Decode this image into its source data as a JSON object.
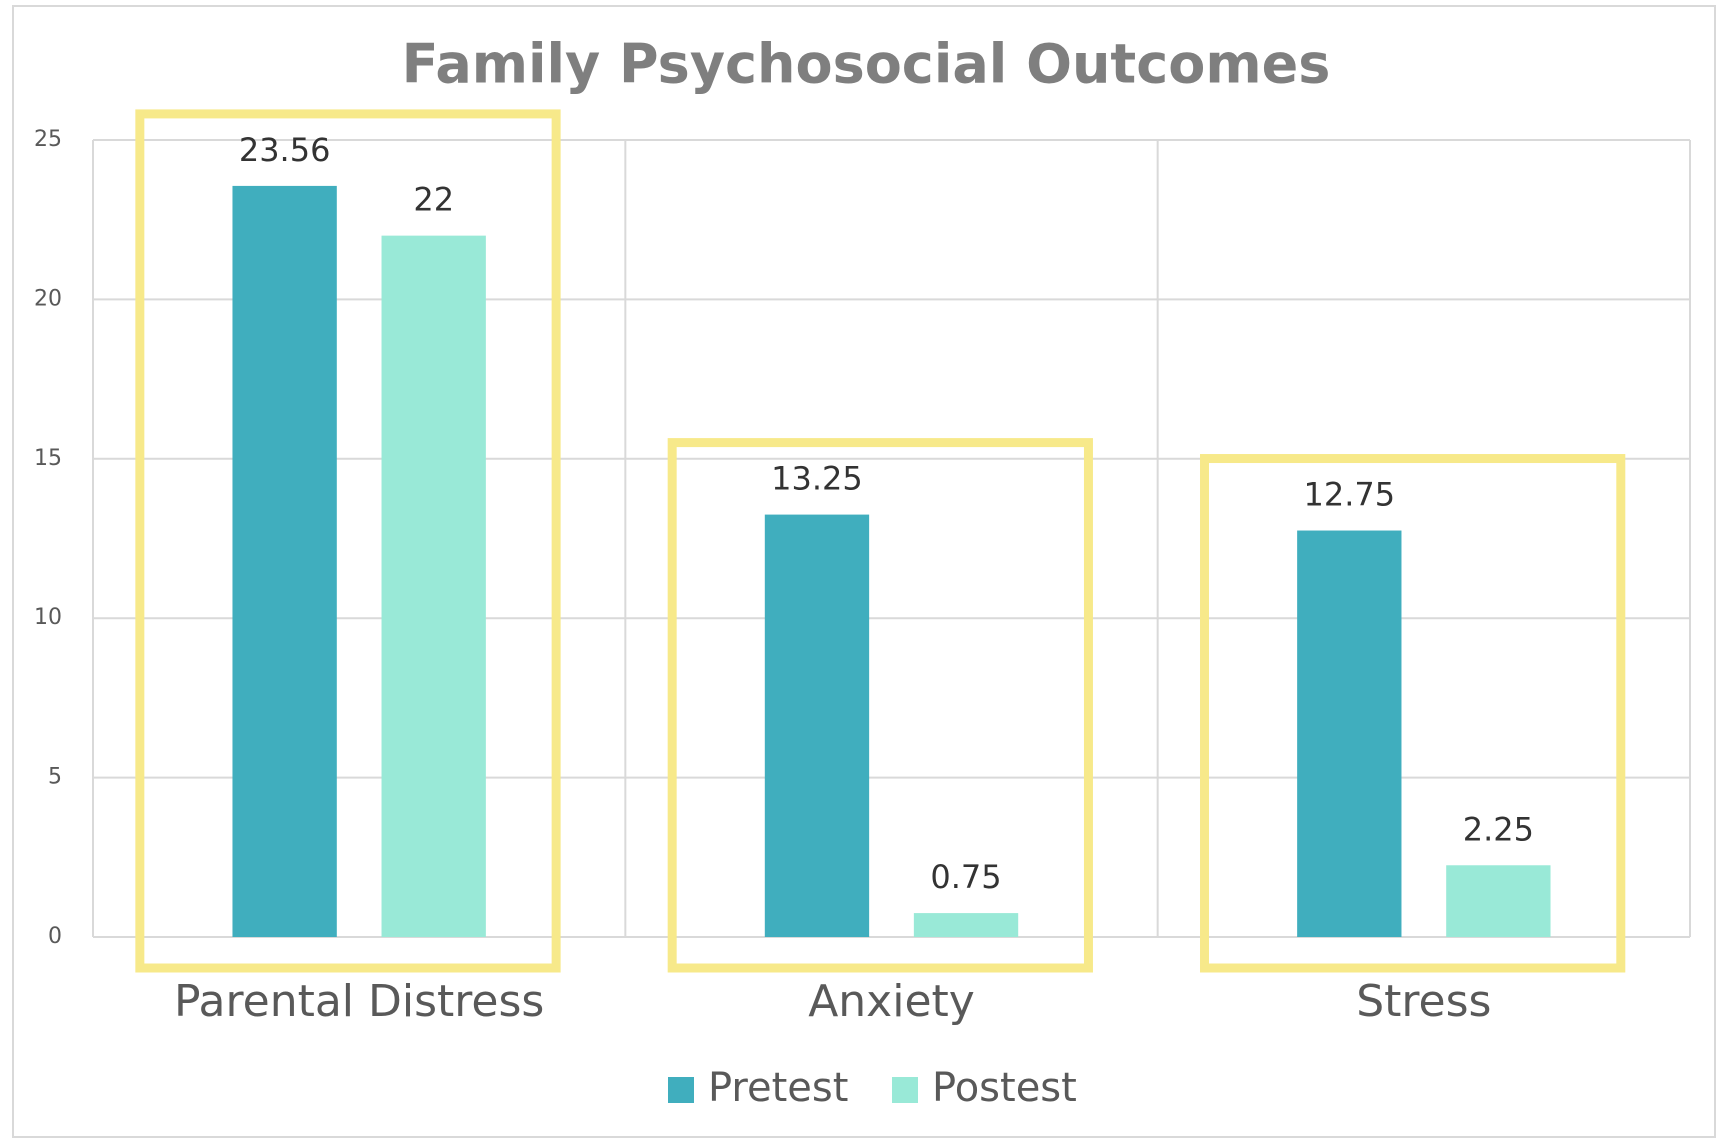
{
  "chart_data": {
    "type": "bar",
    "title": "Family Psychosocial Outcomes",
    "categories": [
      "Parental Distress",
      "Anxiety",
      "Stress"
    ],
    "series": [
      {
        "name": "Pretest",
        "color": "#40aebe",
        "values": [
          23.56,
          13.25,
          12.75
        ]
      },
      {
        "name": "Postest",
        "color": "#99e9d7",
        "values": [
          22,
          0.75,
          2.25
        ]
      }
    ],
    "ylim": [
      0,
      25
    ],
    "yticks": [
      0,
      5,
      10,
      15,
      20,
      25
    ],
    "grid": true,
    "legend": "bottom"
  }
}
